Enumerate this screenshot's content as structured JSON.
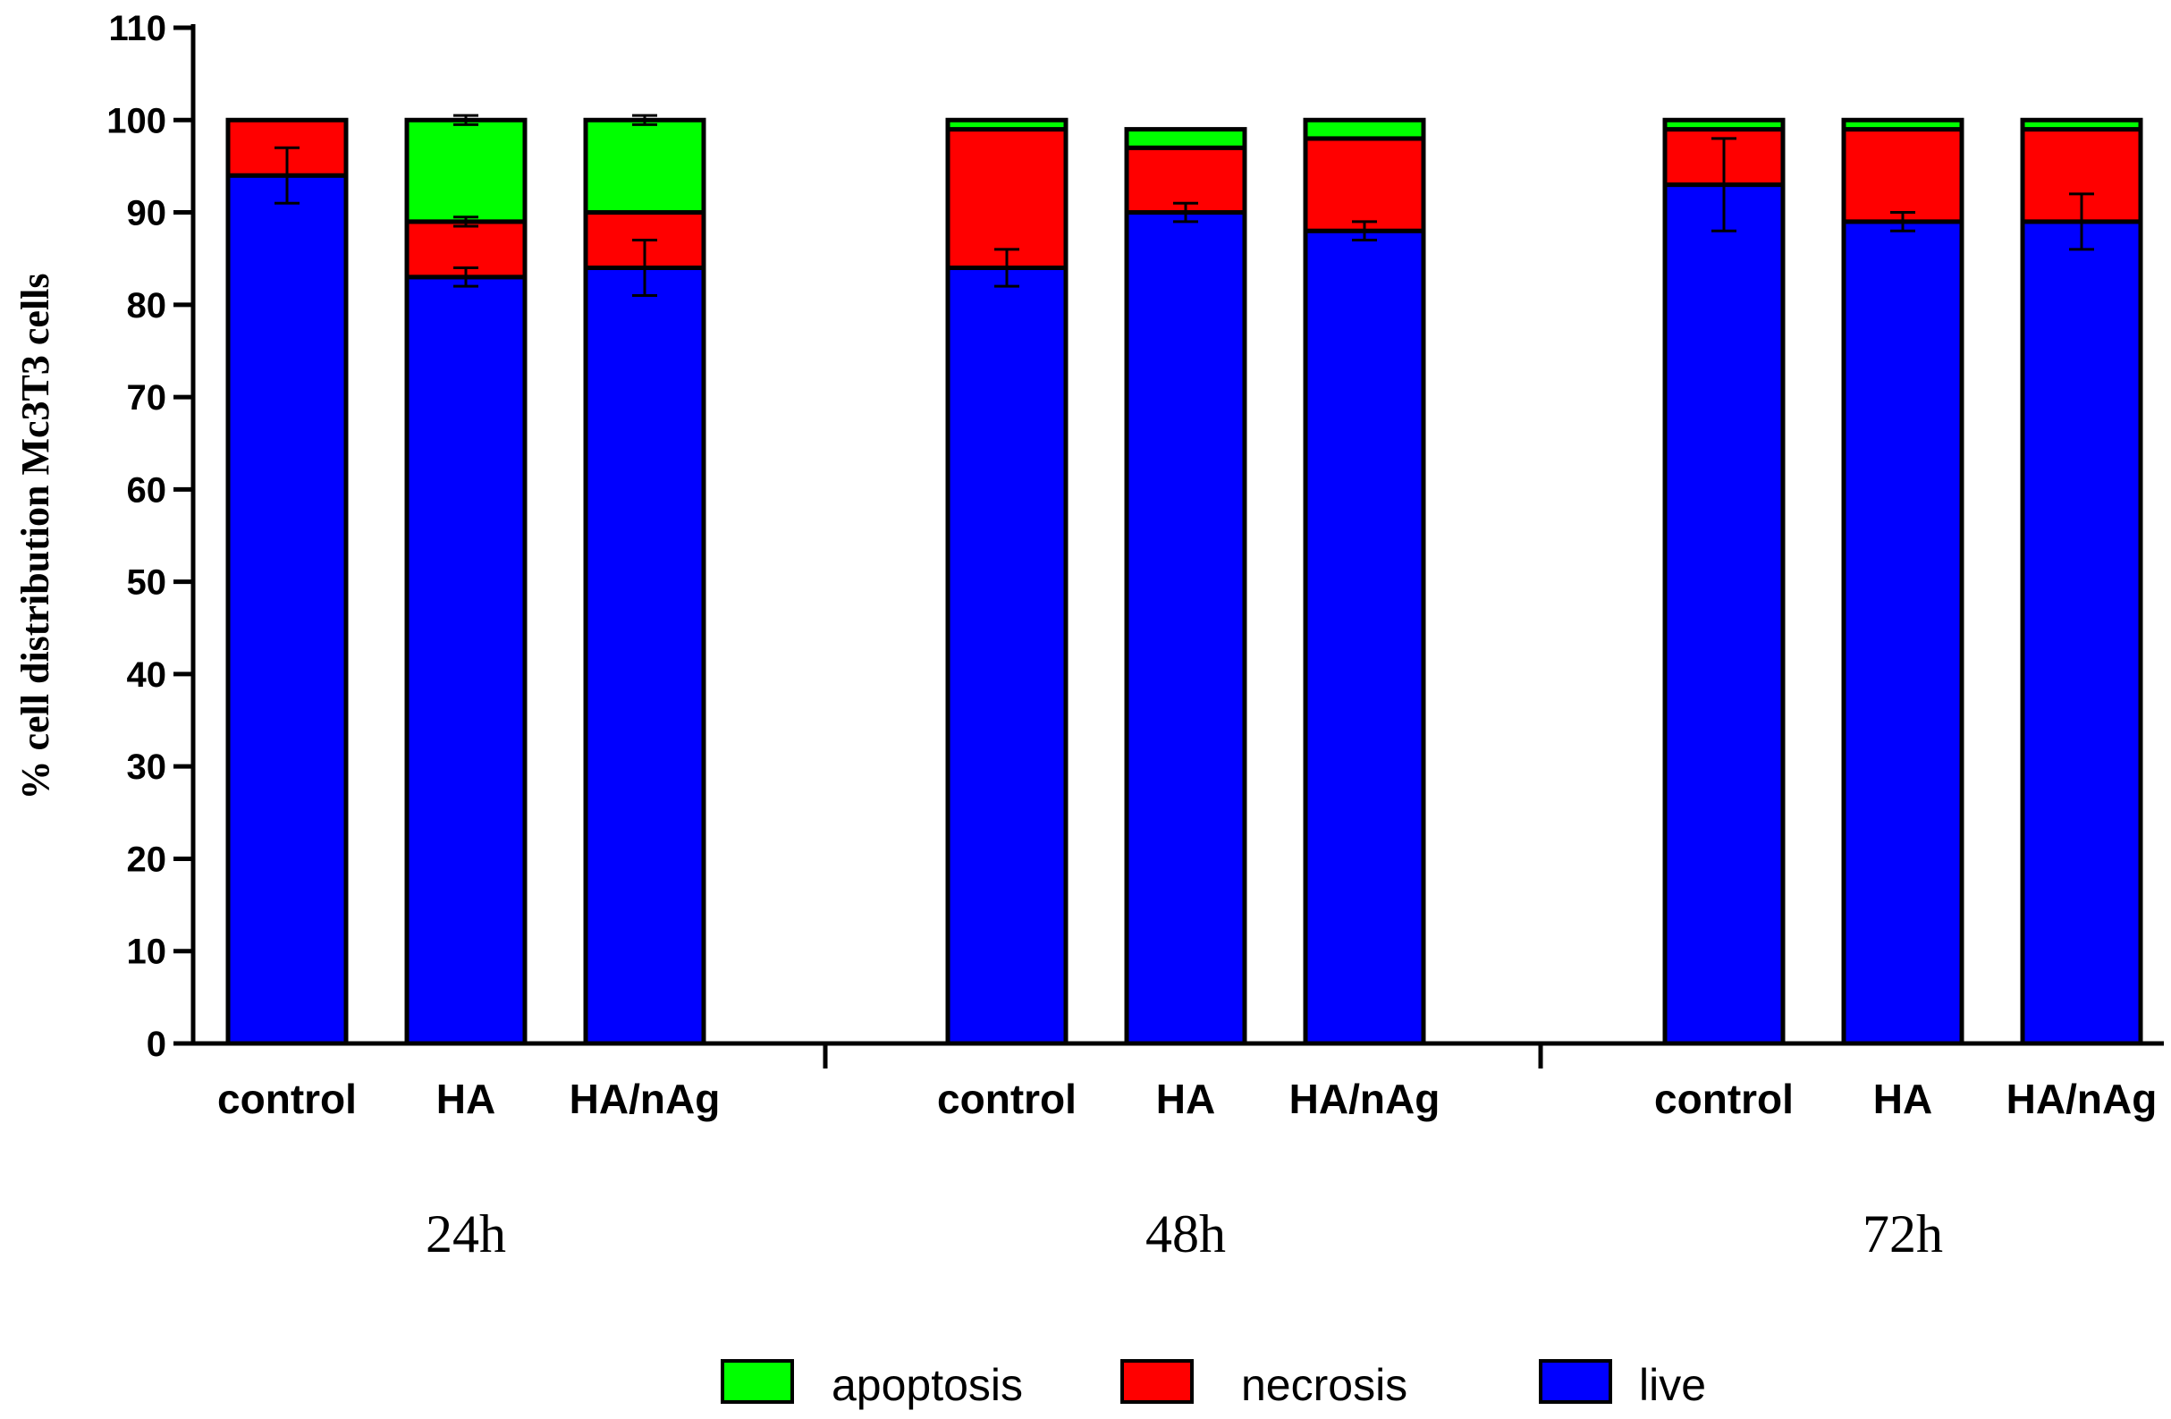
{
  "chart_data": {
    "type": "bar",
    "stacked": true,
    "title": "",
    "xlabel": "",
    "ylabel": "% cell distribution Mc3T3 cells",
    "ylim": [
      0,
      110
    ],
    "yticks": [
      0,
      10,
      20,
      30,
      40,
      50,
      60,
      70,
      80,
      90,
      100,
      110
    ],
    "groups": [
      {
        "label": "24h",
        "bars": [
          {
            "category": "control",
            "live": 94,
            "necrosis": 6,
            "apoptosis": 0,
            "live_err": 3,
            "necrosis_err": 0,
            "apoptosis_err": 0
          },
          {
            "category": "HA",
            "live": 83,
            "necrosis": 6,
            "apoptosis": 11,
            "live_err": 1,
            "necrosis_err": 0.5,
            "apoptosis_err": 0.5
          },
          {
            "category": "HA/nAg",
            "live": 84,
            "necrosis": 6,
            "apoptosis": 10,
            "live_err": 3,
            "necrosis_err": 0,
            "apoptosis_err": 0.5
          }
        ]
      },
      {
        "label": "48h",
        "bars": [
          {
            "category": "control",
            "live": 84,
            "necrosis": 15,
            "apoptosis": 1,
            "live_err": 2,
            "necrosis_err": 0,
            "apoptosis_err": 0
          },
          {
            "category": "HA",
            "live": 90,
            "necrosis": 7,
            "apoptosis": 2,
            "live_err": 1,
            "necrosis_err": 0,
            "apoptosis_err": 0
          },
          {
            "category": "HA/nAg",
            "live": 88,
            "necrosis": 10,
            "apoptosis": 2,
            "live_err": 1,
            "necrosis_err": 0,
            "apoptosis_err": 0
          }
        ]
      },
      {
        "label": "72h",
        "bars": [
          {
            "category": "control",
            "live": 93,
            "necrosis": 6,
            "apoptosis": 1,
            "live_err": 5,
            "necrosis_err": 0,
            "apoptosis_err": 0
          },
          {
            "category": "HA",
            "live": 89,
            "necrosis": 10,
            "apoptosis": 1,
            "live_err": 1,
            "necrosis_err": 0,
            "apoptosis_err": 0
          },
          {
            "category": "HA/nAg",
            "live": 89,
            "necrosis": 10,
            "apoptosis": 1,
            "live_err": 3,
            "necrosis_err": 0,
            "apoptosis_err": 0
          }
        ]
      }
    ],
    "series": [
      {
        "name": "live",
        "key": "live",
        "color": "#0000ff"
      },
      {
        "name": "necrosis",
        "key": "necrosis",
        "color": "#ff0000"
      },
      {
        "name": "apoptosis",
        "key": "apoptosis",
        "color": "#00ff00"
      }
    ],
    "legend": {
      "placement": "bottom-center",
      "order": [
        "apoptosis",
        "necrosis",
        "live"
      ]
    }
  }
}
